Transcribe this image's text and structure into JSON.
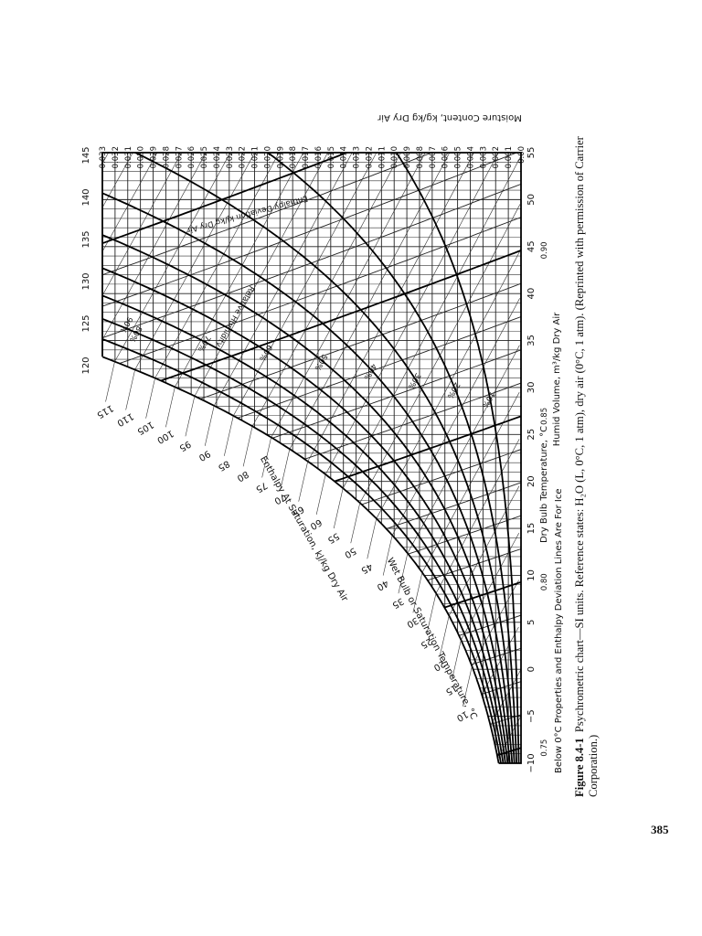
{
  "figure": {
    "moisture_axis_title": "Moisture Content, kg/kg Dry Air",
    "moisture_ticks": [
      "0.00",
      "0.001",
      "0.002",
      "0.003",
      "0.004",
      "0.005",
      "0.006",
      "0.007",
      "0.008",
      "0.009",
      "0.010",
      "0.011",
      "0.012",
      "0.013",
      "0.014",
      "0.015",
      "0.016",
      "0.017",
      "0.018",
      "0.019",
      "0.020",
      "0.021",
      "0.022",
      "0.023",
      "0.024",
      "0.025",
      "0.026",
      "0.027",
      "0.028",
      "0.029",
      "0.030",
      "0.031",
      "0.032",
      "0.033"
    ],
    "dry_bulb_ticks": [
      "−10",
      "−5",
      "0",
      "5",
      "10",
      "15",
      "20",
      "25",
      "30",
      "35",
      "40",
      "45",
      "50",
      "55"
    ],
    "dry_bulb_title": "Dry Bulb Temperature, °C",
    "humid_volume_ticks": [
      "0.75",
      "0.80",
      "0.85",
      "0.90"
    ],
    "humid_volume_title": "Humid Volume, m³/kg Dry Air",
    "enthalpy_ticks": [
      "10",
      "15",
      "20",
      "25",
      "30",
      "35",
      "40",
      "45",
      "50",
      "55",
      "60",
      "65",
      "70",
      "75",
      "80",
      "85",
      "90",
      "95",
      "100",
      "105",
      "110",
      "115"
    ],
    "enthalpy_top_ticks": [
      "120",
      "125",
      "130",
      "135",
      "140",
      "145"
    ],
    "enthalpy_title": "Enthalpy At Saturation, kJ/kg Dry Air",
    "wet_bulb_title": "Wet Bulb or Saturation Temperature, °C",
    "relative_humidity_title": "Relative Humidity",
    "relative_humidity_labels": [
      "10%",
      "20%",
      "30%",
      "40%",
      "50%",
      "60%",
      "70%",
      "80%",
      "90%"
    ],
    "enthalpy_deviation_title": "Enthalpy Deviation kJ/kg Dry Air",
    "ice_note": "Below 0°C Properties and Enthalpy Deviation Lines Are For Ice"
  },
  "caption": {
    "label": "Figure 8.4-1",
    "line1": "Psychrometric chart—SI units. Reference states: H₂O (L, 0°C, 1 atm), dry air (0°C, 1 atm). (Reprinted with permission of Carrier",
    "line2": "Corporation.)"
  },
  "page_number": "385"
}
